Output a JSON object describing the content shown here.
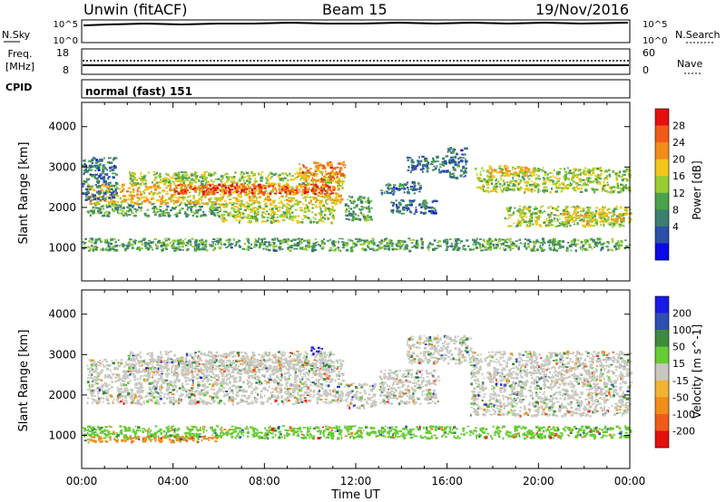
{
  "header": {
    "station": "Unwin (fitACF)",
    "beam": "Beam 15",
    "date": "19/Nov/2016"
  },
  "noise_panel": {
    "left_label": "N.Sky",
    "right_label": "N.Search",
    "left_ticks": [
      "10^5",
      "10^0"
    ],
    "right_ticks": [
      "10^5",
      "10^0"
    ]
  },
  "freq_panel": {
    "left_label_line1": "Freq.",
    "left_label_line2": "[MHz]",
    "right_label": "Nave",
    "left_ticks": [
      "18",
      "8"
    ],
    "right_ticks": [
      "60",
      "0"
    ]
  },
  "cpid_panel": {
    "label": "CPID",
    "value": "normal (fast) 151"
  },
  "xaxis": {
    "label": "Time UT",
    "ticks": [
      "00:00",
      "04:00",
      "08:00",
      "12:00",
      "16:00",
      "20:00",
      "00:00"
    ]
  },
  "colors": {
    "power": [
      "#0a0ae6",
      "#2d4fa8",
      "#3c7f6e",
      "#4aa24a",
      "#99cc33",
      "#f2c61a",
      "#f28c1a",
      "#f25a1a",
      "#e60f0f"
    ],
    "velocity_pos": [
      "#1a1ae6",
      "#2e4fb0",
      "#3c8c3c",
      "#66cc33"
    ],
    "velocity_zero": "#c8c8c0",
    "velocity_neg": [
      "#f2b233",
      "#f28c1a",
      "#f25a1a",
      "#e60f0f"
    ]
  },
  "chart_data": [
    {
      "type": "heatmap",
      "title": "",
      "xlabel": "",
      "ylabel": "Slant Range [km]",
      "xlim": [
        0,
        24
      ],
      "ylim": [
        180,
        4600
      ],
      "yticks": [
        "1000",
        "2000",
        "3000",
        "4000"
      ],
      "colorbar": {
        "label": "Power [dB]",
        "range": [
          0,
          32
        ],
        "tick_labels": [
          "28",
          "24",
          "20",
          "16",
          "12",
          "8",
          "4"
        ]
      },
      "regions": [
        {
          "x": [
            0.2,
            11.4
          ],
          "y": [
            2100,
            2600
          ],
          "value": 20
        },
        {
          "x": [
            4.0,
            11.0
          ],
          "y": [
            2350,
            2600
          ],
          "value": 28
        },
        {
          "x": [
            0.2,
            6.0
          ],
          "y": [
            1800,
            2100
          ],
          "value": 12
        },
        {
          "x": [
            2.0,
            11.5
          ],
          "y": [
            2600,
            2900
          ],
          "value": 16
        },
        {
          "x": [
            6.0,
            11.0
          ],
          "y": [
            1650,
            2100
          ],
          "value": 16
        },
        {
          "x": [
            9.5,
            11.5
          ],
          "y": [
            2650,
            3150
          ],
          "value": 24
        },
        {
          "x": [
            0.0,
            1.5
          ],
          "y": [
            2200,
            3250
          ],
          "value": 8
        },
        {
          "x": [
            11.5,
            12.7
          ],
          "y": [
            1700,
            2300
          ],
          "value": 12
        },
        {
          "x": [
            13.0,
            14.8
          ],
          "y": [
            2350,
            2650
          ],
          "value": 8
        },
        {
          "x": [
            13.5,
            15.6
          ],
          "y": [
            1850,
            2200
          ],
          "value": 8
        },
        {
          "x": [
            14.2,
            16.0
          ],
          "y": [
            2900,
            3300
          ],
          "value": 8
        },
        {
          "x": [
            16.0,
            16.8
          ],
          "y": [
            2750,
            3500
          ],
          "value": 8
        },
        {
          "x": [
            17.2,
            24.0
          ],
          "y": [
            2400,
            3000
          ],
          "value": 16
        },
        {
          "x": [
            17.8,
            19.8
          ],
          "y": [
            2800,
            3050
          ],
          "value": 20
        },
        {
          "x": [
            18.5,
            24.0
          ],
          "y": [
            1550,
            2050
          ],
          "value": 16
        },
        {
          "x": [
            21.0,
            24.0
          ],
          "y": [
            1650,
            1900
          ],
          "value": 20
        },
        {
          "x": [
            0.0,
            24.0
          ],
          "y": [
            950,
            1250
          ],
          "value": 12
        }
      ]
    },
    {
      "type": "heatmap",
      "title": "",
      "xlabel": "Time UT",
      "ylabel": "Slant Range [km]",
      "xlim": [
        0,
        24
      ],
      "ylim": [
        180,
        4600
      ],
      "yticks": [
        "1000",
        "2000",
        "3000",
        "4000"
      ],
      "colorbar": {
        "label": "Velocity [m s^-1]",
        "range": [
          -250,
          250
        ],
        "tick_labels": [
          "200",
          "100",
          "50",
          "15",
          "-15",
          "-50",
          "-100",
          "-200"
        ]
      },
      "regions": [
        {
          "x": [
            0.2,
            11.4
          ],
          "y": [
            1800,
            2900
          ],
          "value": 0
        },
        {
          "x": [
            2.0,
            11.0
          ],
          "y": [
            2600,
            3100
          ],
          "value": 0
        },
        {
          "x": [
            10.0,
            10.5
          ],
          "y": [
            3050,
            3200
          ],
          "value": 220
        },
        {
          "x": [
            11.5,
            12.8
          ],
          "y": [
            1700,
            2300
          ],
          "value": 0
        },
        {
          "x": [
            13.0,
            15.6
          ],
          "y": [
            1800,
            2650
          ],
          "value": 0
        },
        {
          "x": [
            14.2,
            17.0
          ],
          "y": [
            2800,
            3500
          ],
          "value": 0
        },
        {
          "x": [
            17.0,
            24.0
          ],
          "y": [
            1500,
            3100
          ],
          "value": 0
        },
        {
          "x": [
            0.0,
            24.0
          ],
          "y": [
            950,
            1250
          ],
          "value": 30
        },
        {
          "x": [
            0.0,
            6.0
          ],
          "y": [
            850,
            1000
          ],
          "value": -120
        }
      ]
    }
  ]
}
